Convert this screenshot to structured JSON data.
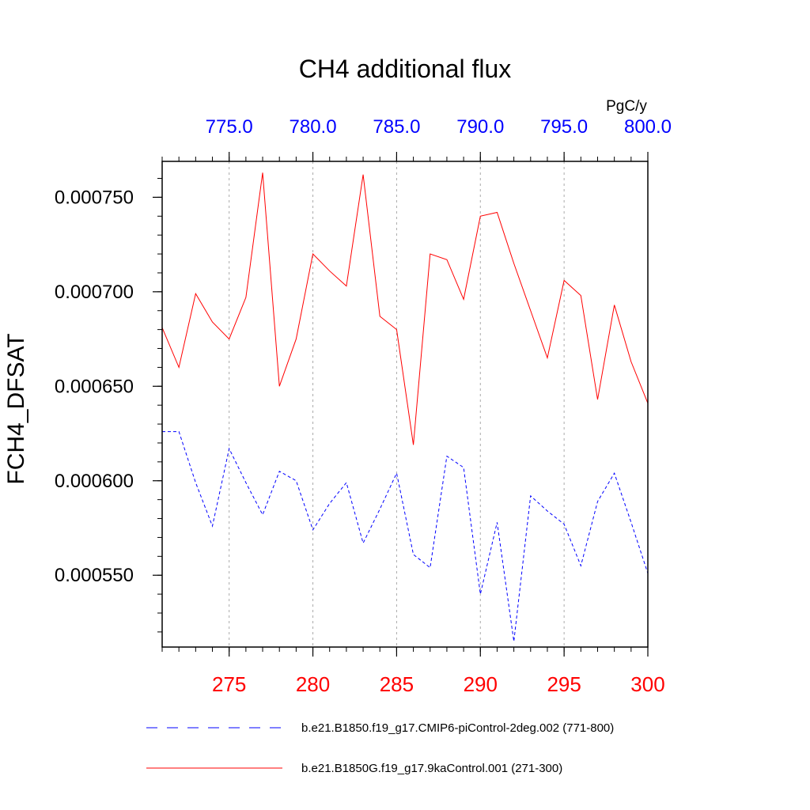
{
  "chart_data": {
    "type": "line",
    "title": "CH4 additional flux",
    "ylabel": "FCH4_DFSAT",
    "top_axis_units": "PgC/y",
    "xlim": [
      271,
      300
    ],
    "ylim": [
      0.000512,
      0.000769
    ],
    "grid": "vertical dashed at major x ticks",
    "legend_placement": "bottom",
    "bottom_axis": {
      "color": "#ff0000",
      "ticks": [
        275,
        280,
        285,
        290,
        295,
        300
      ],
      "labels": [
        "275",
        "280",
        "285",
        "290",
        "295",
        "300"
      ]
    },
    "top_axis": {
      "color": "#0000ff",
      "ticks": [
        775,
        780,
        785,
        790,
        795,
        800
      ],
      "labels": [
        "775.0",
        "780.0",
        "785.0",
        "790.0",
        "795.0",
        "800.0"
      ]
    },
    "y_axis": {
      "ticks": [
        0.00055,
        0.0006,
        0.00065,
        0.0007,
        0.00075
      ],
      "labels": [
        "0.000550",
        "0.000600",
        "0.000650",
        "0.000700",
        "0.000750"
      ]
    },
    "series": [
      {
        "name": "b.e21.B1850G.f19_g17.9kaControl.001 (271-300)",
        "color": "#ff0000",
        "style": "solid",
        "axis": "bottom",
        "x": [
          271,
          272,
          273,
          274,
          275,
          276,
          277,
          278,
          279,
          280,
          281,
          282,
          283,
          284,
          285,
          286,
          287,
          288,
          289,
          290,
          291,
          292,
          293,
          294,
          295,
          296,
          297,
          298,
          299,
          300
        ],
        "values": [
          0.000681,
          0.00066,
          0.000699,
          0.000684,
          0.000675,
          0.000697,
          0.000763,
          0.00065,
          0.000675,
          0.00072,
          0.000711,
          0.000703,
          0.000762,
          0.000687,
          0.00068,
          0.000619,
          0.00072,
          0.000717,
          0.000696,
          0.00074,
          0.000742,
          0.000715,
          0.00069,
          0.000665,
          0.000706,
          0.000698,
          0.000643,
          0.000693,
          0.000663,
          0.000641
        ]
      },
      {
        "name": "b.e21.B1850.f19_g17.CMIP6-piControl-2deg.002 (771-800)",
        "color": "#0000ff",
        "style": "dashed",
        "axis": "top",
        "x": [
          771,
          772,
          773,
          774,
          775,
          776,
          777,
          778,
          779,
          780,
          781,
          782,
          783,
          784,
          785,
          786,
          787,
          788,
          789,
          790,
          791,
          792,
          793,
          794,
          795,
          796,
          797,
          798,
          799,
          800
        ],
        "values": [
          0.000626,
          0.000626,
          0.000599,
          0.000576,
          0.000617,
          0.000599,
          0.000582,
          0.000605,
          0.0006,
          0.000574,
          0.000588,
          0.000599,
          0.000567,
          0.000585,
          0.000604,
          0.000561,
          0.000554,
          0.000613,
          0.000607,
          0.00054,
          0.000578,
          0.000515,
          0.000592,
          0.000584,
          0.000577,
          0.000555,
          0.000589,
          0.000604,
          0.000578,
          0.000551
        ]
      }
    ]
  }
}
